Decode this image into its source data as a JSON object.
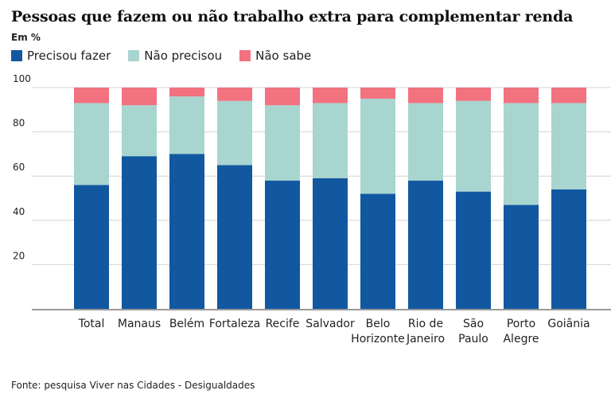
{
  "chart_data": {
    "type": "bar",
    "stacked": true,
    "title": "Pessoas que fazem ou não trabalho extra para complementar renda",
    "subtitle": "Em %",
    "xlabel": "",
    "ylabel": "",
    "ylim": [
      0,
      100
    ],
    "yticks": [
      20,
      40,
      60,
      80,
      100
    ],
    "grid": true,
    "legend_position": "top-left",
    "categories": [
      [
        "Total"
      ],
      [
        "Manaus"
      ],
      [
        "Belém"
      ],
      [
        "Fortaleza"
      ],
      [
        "Recife"
      ],
      [
        "Salvador"
      ],
      [
        "Belo",
        "Horizonte"
      ],
      [
        "Rio de",
        "Janeiro"
      ],
      [
        "São",
        "Paulo"
      ],
      [
        "Porto",
        "Alegre"
      ],
      [
        "Goiânia"
      ]
    ],
    "series": [
      {
        "name": "Precisou fazer",
        "color": "#1158a0",
        "values": [
          56,
          69,
          70,
          65,
          58,
          59,
          52,
          58,
          53,
          47,
          54
        ]
      },
      {
        "name": "Não precisou",
        "color": "#a8d5d0",
        "values": [
          37,
          23,
          26,
          29,
          34,
          34,
          43,
          35,
          41,
          46,
          39
        ]
      },
      {
        "name": "Não sabe",
        "color": "#f2727f",
        "values": [
          7,
          8,
          4,
          6,
          8,
          7,
          5,
          7,
          6,
          7,
          7
        ]
      }
    ],
    "source": "Fonte: pesquisa Viver nas Cidades - Desigualdades"
  }
}
